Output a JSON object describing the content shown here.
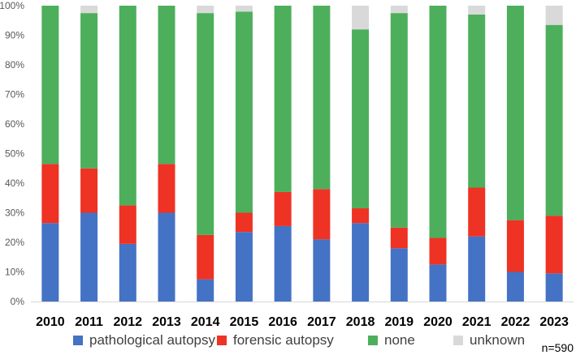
{
  "chart_data": {
    "type": "bar",
    "stacked": true,
    "normalized": true,
    "categories": [
      "2010",
      "2011",
      "2012",
      "2013",
      "2014",
      "2015",
      "2016",
      "2017",
      "2018",
      "2019",
      "2020",
      "2021",
      "2022",
      "2023"
    ],
    "series": [
      {
        "name": "pathological autopsy",
        "color": "#4472C4",
        "values": [
          26.5,
          30,
          19.5,
          30,
          7.5,
          23.5,
          25.5,
          21,
          26.5,
          18,
          12.5,
          22,
          10,
          9.5
        ]
      },
      {
        "name": "forensic autopsy",
        "color": "#EE3224",
        "values": [
          20,
          15,
          13,
          16.5,
          15,
          6.5,
          11.5,
          17,
          5,
          7,
          9,
          16.5,
          17.5,
          19.5
        ]
      },
      {
        "name": "none",
        "color": "#4DAF5B",
        "values": [
          53.5,
          52.5,
          67.5,
          53.5,
          75,
          68,
          63,
          62,
          60.5,
          72.5,
          78.5,
          58.5,
          72.5,
          64.5
        ]
      },
      {
        "name": "unknown",
        "color": "#D9D9D9",
        "values": [
          0,
          2.5,
          0,
          0,
          2.5,
          2,
          0,
          0,
          8,
          2.5,
          0,
          3,
          0,
          6.5
        ]
      }
    ],
    "ylim": [
      0,
      100
    ],
    "yticks": [
      "0%",
      "10%",
      "20%",
      "30%",
      "40%",
      "50%",
      "60%",
      "70%",
      "80%",
      "90%",
      "100%"
    ],
    "grid": false,
    "legend_position": "bottom",
    "annotation": "n=590"
  }
}
